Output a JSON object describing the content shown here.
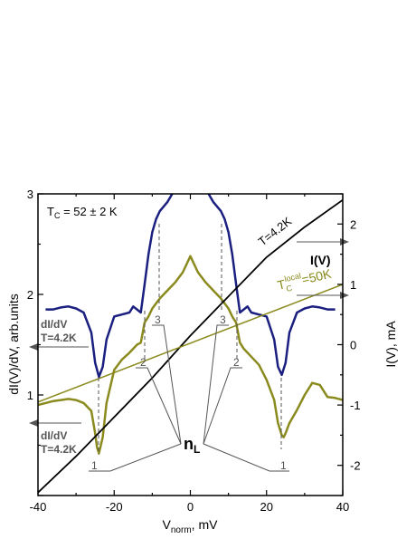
{
  "chart_data": {
    "type": "line",
    "xlabel_main": "V",
    "xlabel_sub": "norm",
    "xlabel_unit": ", mV",
    "ylabel_left": "dI(V)/dV, arb.units",
    "ylabel_right": "I(V), mA",
    "xlim": [
      -40,
      40
    ],
    "ylim_left": [
      0,
      3
    ],
    "ylim_right": [
      -2.5,
      2.5
    ],
    "x_ticks": [
      "-40",
      "-20",
      "0",
      "20",
      "40"
    ],
    "y_left_ticks": [
      "1",
      "2",
      "3"
    ],
    "y_right_ticks": [
      "-2",
      "-1",
      "0",
      "1",
      "2"
    ],
    "annotations": {
      "tc_main": "T",
      "tc_sub": "C",
      "tc_rest": " = 52 ± 2 K",
      "tlocal_main": "T",
      "tlocal_sub": "C",
      "tlocal_sup": "local",
      "tlocal_rest": "=50K",
      "iv_temp": "T=4.2K",
      "iv_label": "I(V)",
      "didv_label": "dI/dV",
      "didv_temp": "T=4.2K",
      "nl_main": "n",
      "nl_sub": "L",
      "peak_1": "1",
      "peak_2": "2",
      "peak_3": "3"
    },
    "colors": {
      "navy": "#1a1f80",
      "olive": "#8a8a1e",
      "black": "#000000",
      "gray": "#555555"
    },
    "series": [
      {
        "axis": "left",
        "x": [
          -38,
          -36,
          -34,
          -32,
          -30,
          -28,
          -26,
          -25,
          -24,
          -23,
          -22,
          -20,
          -18,
          -16,
          -15,
          -14,
          -13,
          -12,
          -11,
          -10,
          -9,
          -8,
          -6,
          -4,
          -2,
          0,
          2,
          4,
          6,
          8,
          9,
          10,
          11,
          12,
          13,
          14,
          15,
          16,
          18,
          20,
          22,
          23,
          24,
          25,
          26,
          28,
          30,
          32,
          34,
          36,
          38
        ],
        "values": [
          1.85,
          1.85,
          1.87,
          1.88,
          1.86,
          1.82,
          1.62,
          1.32,
          1.18,
          1.28,
          1.55,
          1.78,
          1.8,
          1.82,
          1.88,
          1.85,
          1.82,
          2.1,
          2.4,
          2.62,
          2.75,
          2.83,
          2.92,
          3.05,
          3.25,
          3.45,
          3.25,
          3.05,
          2.92,
          2.83,
          2.75,
          2.62,
          2.4,
          2.1,
          1.82,
          1.85,
          1.88,
          1.82,
          1.8,
          1.78,
          1.55,
          1.28,
          1.2,
          1.32,
          1.62,
          1.82,
          1.86,
          1.88,
          1.87,
          1.85,
          1.85
        ]
      },
      {
        "axis": "left",
        "x": [
          -40,
          -38,
          -36,
          -34,
          -32,
          -30,
          -28,
          -26,
          -25,
          -24.5,
          -24,
          -23,
          -22,
          -20,
          -18,
          -16,
          -14,
          -13,
          -12,
          -11,
          -10,
          -8,
          -6,
          -4,
          -2,
          0,
          2,
          4,
          6,
          8,
          10,
          11,
          12,
          13,
          14,
          16,
          18,
          20,
          22,
          23,
          24,
          24.5,
          25,
          26,
          28,
          30,
          32,
          34,
          36,
          38,
          40
        ],
        "values": [
          0.9,
          0.92,
          0.94,
          0.95,
          0.96,
          0.95,
          0.92,
          0.84,
          0.62,
          0.48,
          0.42,
          0.58,
          0.92,
          1.25,
          1.35,
          1.42,
          1.5,
          1.52,
          1.72,
          1.78,
          1.86,
          1.96,
          2.04,
          2.12,
          2.22,
          2.38,
          2.22,
          2.12,
          2.04,
          1.96,
          1.86,
          1.78,
          1.72,
          1.52,
          1.46,
          1.38,
          1.3,
          1.15,
          0.95,
          0.72,
          0.6,
          0.58,
          0.62,
          0.72,
          0.85,
          1.0,
          1.12,
          1.1,
          0.98,
          0.97,
          0.95
        ]
      },
      {
        "axis": "right",
        "x": [
          -40,
          -30,
          -20,
          -10,
          0,
          10,
          20,
          30,
          40
        ],
        "values": [
          -2.45,
          -1.85,
          -1.2,
          -0.55,
          0.15,
          0.8,
          1.45,
          1.95,
          2.4
        ]
      },
      {
        "axis": "right",
        "x": [
          -40,
          40
        ],
        "values": [
          -0.95,
          1.0
        ]
      }
    ]
  }
}
